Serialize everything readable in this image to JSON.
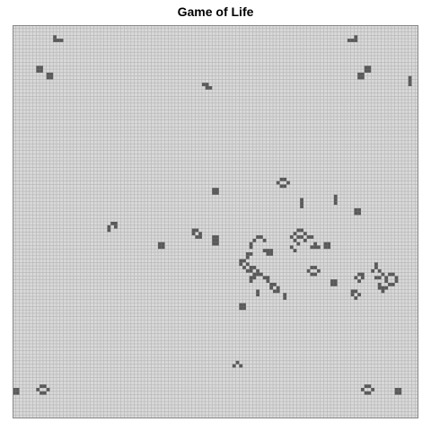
{
  "title": "Game of Life",
  "grid": {
    "cols": 120,
    "rows": 116,
    "show_gridlines": true
  },
  "colors": {
    "background": "#d9d9d9",
    "gridline": "#b4b4b4",
    "alive": "#5a5a5a",
    "border": "#888888"
  },
  "live_cells": [
    [
      12,
      3
    ],
    [
      12,
      4
    ],
    [
      13,
      4
    ],
    [
      14,
      4
    ],
    [
      101,
      3
    ],
    [
      101,
      4
    ],
    [
      100,
      4
    ],
    [
      99,
      4
    ],
    [
      7,
      12
    ],
    [
      8,
      12
    ],
    [
      7,
      13
    ],
    [
      8,
      13
    ],
    [
      10,
      14
    ],
    [
      11,
      14
    ],
    [
      10,
      15
    ],
    [
      11,
      15
    ],
    [
      104,
      12
    ],
    [
      105,
      12
    ],
    [
      104,
      13
    ],
    [
      105,
      13
    ],
    [
      102,
      14
    ],
    [
      103,
      14
    ],
    [
      102,
      15
    ],
    [
      103,
      15
    ],
    [
      117,
      15
    ],
    [
      117,
      16
    ],
    [
      117,
      17
    ],
    [
      56,
      17
    ],
    [
      57,
      17
    ],
    [
      57,
      18
    ],
    [
      58,
      18
    ],
    [
      79,
      45
    ],
    [
      80,
      45
    ],
    [
      78,
      46
    ],
    [
      81,
      46
    ],
    [
      79,
      47
    ],
    [
      80,
      47
    ],
    [
      59,
      48
    ],
    [
      60,
      48
    ],
    [
      59,
      49
    ],
    [
      60,
      49
    ],
    [
      85,
      51
    ],
    [
      85,
      52
    ],
    [
      85,
      53
    ],
    [
      95,
      50
    ],
    [
      95,
      51
    ],
    [
      95,
      52
    ],
    [
      101,
      54
    ],
    [
      102,
      54
    ],
    [
      101,
      55
    ],
    [
      102,
      55
    ],
    [
      29,
      58
    ],
    [
      30,
      58
    ],
    [
      28,
      59
    ],
    [
      30,
      59
    ],
    [
      28,
      60
    ],
    [
      53,
      60
    ],
    [
      54,
      60
    ],
    [
      53,
      61
    ],
    [
      55,
      61
    ],
    [
      54,
      62
    ],
    [
      55,
      62
    ],
    [
      84,
      60
    ],
    [
      85,
      60
    ],
    [
      83,
      61
    ],
    [
      86,
      61
    ],
    [
      84,
      62
    ],
    [
      85,
      62
    ],
    [
      59,
      62
    ],
    [
      60,
      62
    ],
    [
      59,
      63
    ],
    [
      60,
      63
    ],
    [
      59,
      64
    ],
    [
      60,
      64
    ],
    [
      72,
      62
    ],
    [
      73,
      62
    ],
    [
      71,
      63
    ],
    [
      74,
      63
    ],
    [
      70,
      64
    ],
    [
      70,
      65
    ],
    [
      82,
      62
    ],
    [
      83,
      63
    ],
    [
      84,
      64
    ],
    [
      82,
      65
    ],
    [
      83,
      66
    ],
    [
      87,
      62
    ],
    [
      88,
      62
    ],
    [
      86,
      63
    ],
    [
      89,
      64
    ],
    [
      88,
      65
    ],
    [
      89,
      65
    ],
    [
      90,
      65
    ],
    [
      92,
      64
    ],
    [
      93,
      64
    ],
    [
      92,
      65
    ],
    [
      93,
      65
    ],
    [
      43,
      64
    ],
    [
      44,
      64
    ],
    [
      43,
      65
    ],
    [
      44,
      65
    ],
    [
      74,
      66
    ],
    [
      75,
      66
    ],
    [
      76,
      66
    ],
    [
      75,
      67
    ],
    [
      76,
      67
    ],
    [
      69,
      67
    ],
    [
      70,
      67
    ],
    [
      69,
      68
    ],
    [
      67,
      69
    ],
    [
      68,
      69
    ],
    [
      67,
      70
    ],
    [
      69,
      70
    ],
    [
      68,
      71
    ],
    [
      70,
      71
    ],
    [
      71,
      71
    ],
    [
      69,
      72
    ],
    [
      70,
      72
    ],
    [
      72,
      72
    ],
    [
      71,
      73
    ],
    [
      72,
      73
    ],
    [
      73,
      73
    ],
    [
      70,
      74
    ],
    [
      71,
      74
    ],
    [
      74,
      74
    ],
    [
      75,
      74
    ],
    [
      70,
      75
    ],
    [
      75,
      75
    ],
    [
      76,
      76
    ],
    [
      77,
      76
    ],
    [
      76,
      77
    ],
    [
      78,
      77
    ],
    [
      77,
      78
    ],
    [
      78,
      78
    ],
    [
      88,
      71
    ],
    [
      89,
      71
    ],
    [
      87,
      72
    ],
    [
      90,
      72
    ],
    [
      88,
      73
    ],
    [
      89,
      73
    ],
    [
      107,
      70
    ],
    [
      107,
      71
    ],
    [
      106,
      72
    ],
    [
      108,
      72
    ],
    [
      109,
      73
    ],
    [
      107,
      74
    ],
    [
      108,
      74
    ],
    [
      111,
      73
    ],
    [
      112,
      73
    ],
    [
      110,
      74
    ],
    [
      113,
      74
    ],
    [
      110,
      75
    ],
    [
      113,
      75
    ],
    [
      111,
      76
    ],
    [
      112,
      76
    ],
    [
      102,
      73
    ],
    [
      103,
      73
    ],
    [
      101,
      74
    ],
    [
      103,
      74
    ],
    [
      102,
      75
    ],
    [
      94,
      75
    ],
    [
      95,
      75
    ],
    [
      94,
      76
    ],
    [
      95,
      76
    ],
    [
      108,
      76
    ],
    [
      108,
      77
    ],
    [
      109,
      77
    ],
    [
      110,
      77
    ],
    [
      109,
      78
    ],
    [
      100,
      78
    ],
    [
      101,
      78
    ],
    [
      100,
      79
    ],
    [
      102,
      79
    ],
    [
      101,
      80
    ],
    [
      72,
      78
    ],
    [
      72,
      79
    ],
    [
      80,
      79
    ],
    [
      80,
      80
    ],
    [
      67,
      82
    ],
    [
      68,
      82
    ],
    [
      67,
      83
    ],
    [
      68,
      83
    ],
    [
      66,
      99
    ],
    [
      65,
      100
    ],
    [
      67,
      100
    ],
    [
      0,
      107
    ],
    [
      1,
      107
    ],
    [
      0,
      108
    ],
    [
      1,
      108
    ],
    [
      8,
      106
    ],
    [
      9,
      106
    ],
    [
      7,
      107
    ],
    [
      10,
      107
    ],
    [
      8,
      108
    ],
    [
      9,
      108
    ],
    [
      104,
      106
    ],
    [
      105,
      106
    ],
    [
      103,
      107
    ],
    [
      106,
      107
    ],
    [
      104,
      108
    ],
    [
      105,
      108
    ],
    [
      113,
      107
    ],
    [
      114,
      107
    ],
    [
      113,
      108
    ],
    [
      114,
      108
    ]
  ]
}
